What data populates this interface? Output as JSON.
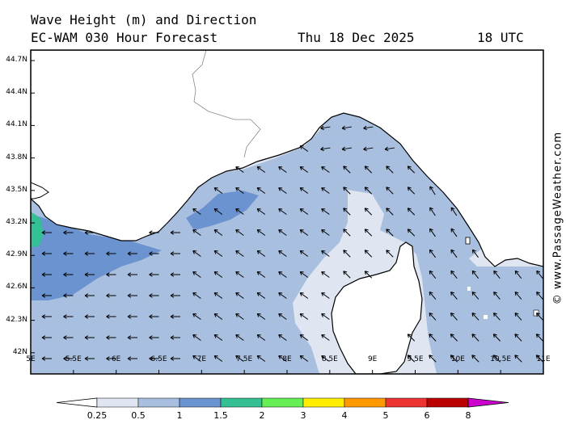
{
  "header": {
    "title": "Wave Height (m) and Direction",
    "model": "EC-WAM 030 Hour Forecast",
    "date": "Thu 18 Dec 2025",
    "time": "18 UTC"
  },
  "watermark": "© www.PassageWeather.com",
  "axes": {
    "y_ticks": [
      "44.7N",
      "44.4N",
      "44.1N",
      "43.8N",
      "43.5N",
      "43.2N",
      "42.9N",
      "42.6N",
      "42.3N",
      "42N"
    ],
    "x_ticks": [
      "5E",
      "5.5E",
      "6E",
      "6.5E",
      "7E",
      "7.5E",
      "8E",
      "8.5E",
      "9E",
      "9.5E",
      "10E",
      "10.5E",
      "11E"
    ]
  },
  "legend": {
    "labels": [
      "0.25",
      "0.5",
      "1",
      "1.5",
      "2",
      "3",
      "4",
      "5",
      "6",
      "8"
    ],
    "colors": [
      "#ffffff",
      "#dfe6f2",
      "#a9bfdf",
      "#6b93cf",
      "#35bf94",
      "#66ee55",
      "#ffee00",
      "#ff9900",
      "#ee3333",
      "#bb0000",
      "#cc00cc"
    ]
  },
  "map_colors": {
    "sea_light": "#dfe6f2",
    "sea_mid": "#a9bfdf",
    "sea_dark": "#6b93cf",
    "sea_green": "#35bf94",
    "land": "#ffffff"
  }
}
